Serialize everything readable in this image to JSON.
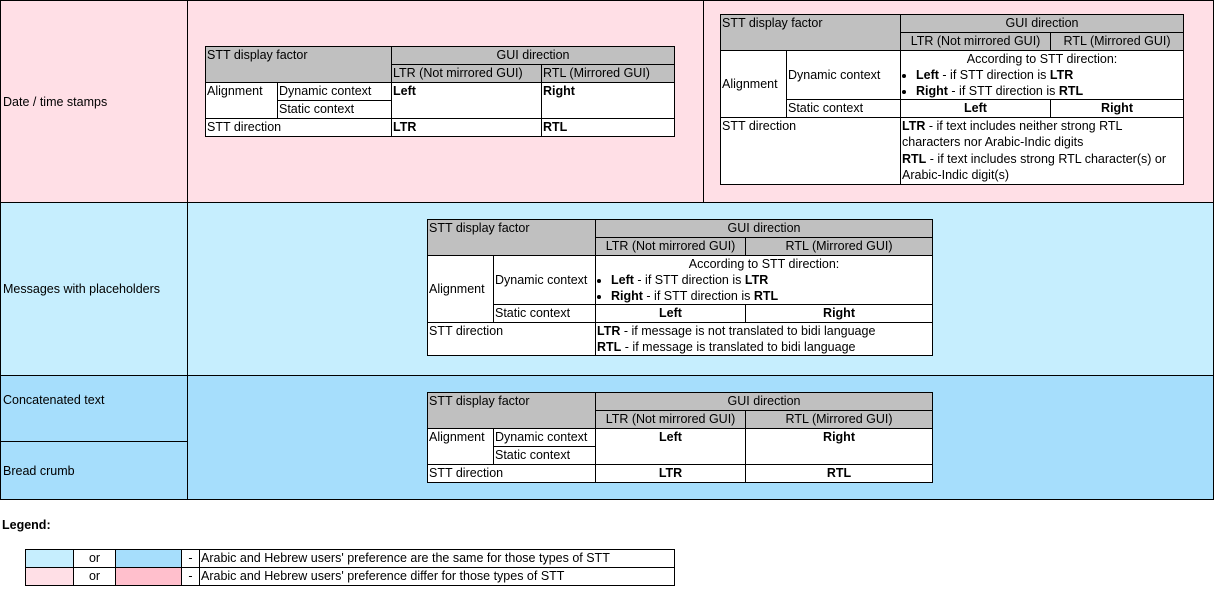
{
  "colors": {
    "pink_light": "#ffdfe6",
    "pink_dark": "#ffbfcc",
    "blue_light": "#c6eefe",
    "blue_dark": "#a6defc",
    "header_grey": "#c0c0c0"
  },
  "rows": {
    "datetime": "Date / time stamps",
    "messages": "Messages with placeholders",
    "concat": "Concatenated text",
    "breadcrumb": "Bread crumb"
  },
  "h": {
    "factor": "STT display factor",
    "gui": "GUI direction",
    "ltr": "LTR (Not mirrored GUI)",
    "rtl": "RTL (Mirrored GUI)",
    "alignment": "Alignment",
    "dynamic": "Dynamic context",
    "static": "Static context",
    "direction": "STT direction",
    "left": "Left",
    "right": "Right",
    "LTR": "LTR",
    "RTL": "RTL"
  },
  "dyn": {
    "intro": "According to STT direction:",
    "b1_bold": "Left",
    "b1_text": " - if STT direction is ",
    "b1_end": "LTR",
    "b2_bold": "Right",
    "b2_text": " - if STT direction is ",
    "b2_end": "RTL"
  },
  "t2dir": {
    "l1_bold": "LTR",
    "l1_text": " - if text includes neither strong RTL characters nor Arabic-Indic digits",
    "l2_bold": "RTL",
    "l2_text": " - if text includes strong RTL character(s) or Arabic-Indic digit(s)"
  },
  "t3dir": {
    "l1_bold": "LTR",
    "l1_text": " - if message is not translated to bidi language",
    "l2_bold": "RTL",
    "l2_text": " - if message is translated to bidi language"
  },
  "legend": {
    "title": "Legend:",
    "or": "or",
    "dash": "-",
    "same": "Arabic and Hebrew users' preference are the same for those types of STT",
    "differ": "Arabic and Hebrew users' preference differ for those types of STT"
  }
}
